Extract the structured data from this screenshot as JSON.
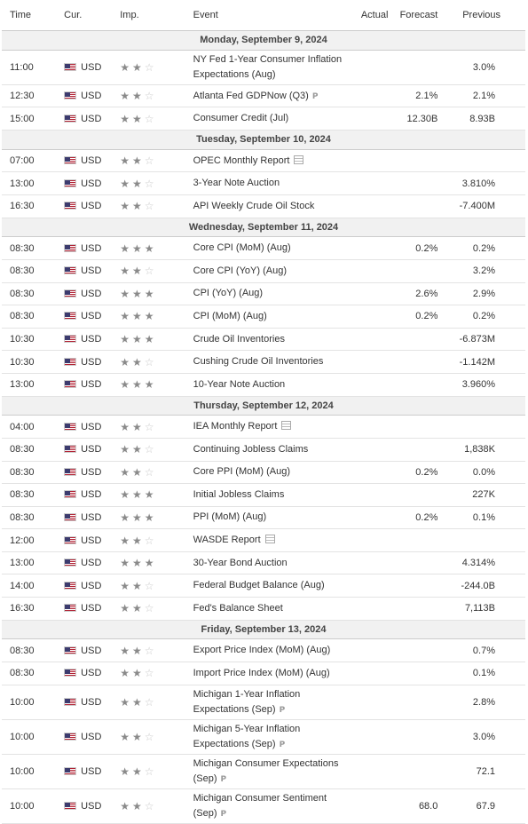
{
  "headers": {
    "time": "Time",
    "cur": "Cur.",
    "imp": "Imp.",
    "event": "Event",
    "actual": "Actual",
    "forecast": "Forecast",
    "previous": "Previous"
  },
  "groups": [
    {
      "day": "Monday, September 9, 2024",
      "rows": [
        {
          "time": "11:00",
          "cur": "USD",
          "stars": 2,
          "event": "NY Fed 1-Year Consumer Inflation Expectations (Aug)",
          "tag": "",
          "actual": "",
          "forecast": "",
          "previous": "3.0%",
          "tall": true
        },
        {
          "time": "12:30",
          "cur": "USD",
          "stars": 2,
          "event": "Atlanta Fed GDPNow (Q3)",
          "tag": "P",
          "actual": "",
          "forecast": "2.1%",
          "previous": "2.1%"
        },
        {
          "time": "15:00",
          "cur": "USD",
          "stars": 2,
          "event": "Consumer Credit (Jul)",
          "tag": "",
          "actual": "",
          "forecast": "12.30B",
          "previous": "8.93B"
        }
      ]
    },
    {
      "day": "Tuesday, September 10, 2024",
      "rows": [
        {
          "time": "07:00",
          "cur": "USD",
          "stars": 2,
          "event": "OPEC Monthly Report",
          "tag": "report",
          "actual": "",
          "forecast": "",
          "previous": ""
        },
        {
          "time": "13:00",
          "cur": "USD",
          "stars": 2,
          "event": "3-Year Note Auction",
          "tag": "",
          "actual": "",
          "forecast": "",
          "previous": "3.810%"
        },
        {
          "time": "16:30",
          "cur": "USD",
          "stars": 2,
          "event": "API Weekly Crude Oil Stock",
          "tag": "",
          "actual": "",
          "forecast": "",
          "previous": "-7.400M"
        }
      ]
    },
    {
      "day": "Wednesday, September 11, 2024",
      "rows": [
        {
          "time": "08:30",
          "cur": "USD",
          "stars": 3,
          "event": "Core CPI (MoM) (Aug)",
          "tag": "",
          "actual": "",
          "forecast": "0.2%",
          "previous": "0.2%"
        },
        {
          "time": "08:30",
          "cur": "USD",
          "stars": 2,
          "event": "Core CPI (YoY) (Aug)",
          "tag": "",
          "actual": "",
          "forecast": "",
          "previous": "3.2%"
        },
        {
          "time": "08:30",
          "cur": "USD",
          "stars": 3,
          "event": "CPI (YoY) (Aug)",
          "tag": "",
          "actual": "",
          "forecast": "2.6%",
          "previous": "2.9%"
        },
        {
          "time": "08:30",
          "cur": "USD",
          "stars": 3,
          "event": "CPI (MoM) (Aug)",
          "tag": "",
          "actual": "",
          "forecast": "0.2%",
          "previous": "0.2%"
        },
        {
          "time": "10:30",
          "cur": "USD",
          "stars": 3,
          "event": "Crude Oil Inventories",
          "tag": "",
          "actual": "",
          "forecast": "",
          "previous": "-6.873M"
        },
        {
          "time": "10:30",
          "cur": "USD",
          "stars": 2,
          "event": "Cushing Crude Oil Inventories",
          "tag": "",
          "actual": "",
          "forecast": "",
          "previous": "-1.142M"
        },
        {
          "time": "13:00",
          "cur": "USD",
          "stars": 3,
          "event": "10-Year Note Auction",
          "tag": "",
          "actual": "",
          "forecast": "",
          "previous": "3.960%"
        }
      ]
    },
    {
      "day": "Thursday, September 12, 2024",
      "rows": [
        {
          "time": "04:00",
          "cur": "USD",
          "stars": 2,
          "event": "IEA Monthly Report",
          "tag": "report",
          "actual": "",
          "forecast": "",
          "previous": ""
        },
        {
          "time": "08:30",
          "cur": "USD",
          "stars": 2,
          "event": "Continuing Jobless Claims",
          "tag": "",
          "actual": "",
          "forecast": "",
          "previous": "1,838K"
        },
        {
          "time": "08:30",
          "cur": "USD",
          "stars": 2,
          "event": "Core PPI (MoM) (Aug)",
          "tag": "",
          "actual": "",
          "forecast": "0.2%",
          "previous": "0.0%"
        },
        {
          "time": "08:30",
          "cur": "USD",
          "stars": 3,
          "event": "Initial Jobless Claims",
          "tag": "",
          "actual": "",
          "forecast": "",
          "previous": "227K"
        },
        {
          "time": "08:30",
          "cur": "USD",
          "stars": 3,
          "event": "PPI (MoM) (Aug)",
          "tag": "",
          "actual": "",
          "forecast": "0.2%",
          "previous": "0.1%"
        },
        {
          "time": "12:00",
          "cur": "USD",
          "stars": 2,
          "event": "WASDE Report",
          "tag": "report",
          "actual": "",
          "forecast": "",
          "previous": ""
        },
        {
          "time": "13:00",
          "cur": "USD",
          "stars": 3,
          "event": "30-Year Bond Auction",
          "tag": "",
          "actual": "",
          "forecast": "",
          "previous": "4.314%"
        },
        {
          "time": "14:00",
          "cur": "USD",
          "stars": 2,
          "event": "Federal Budget Balance (Aug)",
          "tag": "",
          "actual": "",
          "forecast": "",
          "previous": "-244.0B"
        },
        {
          "time": "16:30",
          "cur": "USD",
          "stars": 2,
          "event": "Fed's Balance Sheet",
          "tag": "",
          "actual": "",
          "forecast": "",
          "previous": "7,113B"
        }
      ]
    },
    {
      "day": "Friday, September 13, 2024",
      "rows": [
        {
          "time": "08:30",
          "cur": "USD",
          "stars": 2,
          "event": "Export Price Index (MoM) (Aug)",
          "tag": "",
          "actual": "",
          "forecast": "",
          "previous": "0.7%"
        },
        {
          "time": "08:30",
          "cur": "USD",
          "stars": 2,
          "event": "Import Price Index (MoM) (Aug)",
          "tag": "",
          "actual": "",
          "forecast": "",
          "previous": "0.1%"
        },
        {
          "time": "10:00",
          "cur": "USD",
          "stars": 2,
          "event": "Michigan 1-Year Inflation Expectations (Sep)",
          "tag": "P",
          "actual": "",
          "forecast": "",
          "previous": "2.8%",
          "tall": true
        },
        {
          "time": "10:00",
          "cur": "USD",
          "stars": 2,
          "event": "Michigan 5-Year Inflation Expectations (Sep)",
          "tag": "P",
          "actual": "",
          "forecast": "",
          "previous": "3.0%",
          "tall": true
        },
        {
          "time": "10:00",
          "cur": "USD",
          "stars": 2,
          "event": "Michigan Consumer Expectations (Sep)",
          "tag": "P",
          "actual": "",
          "forecast": "",
          "previous": "72.1",
          "tall": true
        },
        {
          "time": "10:00",
          "cur": "USD",
          "stars": 2,
          "event": "Michigan Consumer Sentiment (Sep)",
          "tag": "P",
          "actual": "",
          "forecast": "68.0",
          "previous": "67.9",
          "tall": true
        }
      ]
    }
  ]
}
